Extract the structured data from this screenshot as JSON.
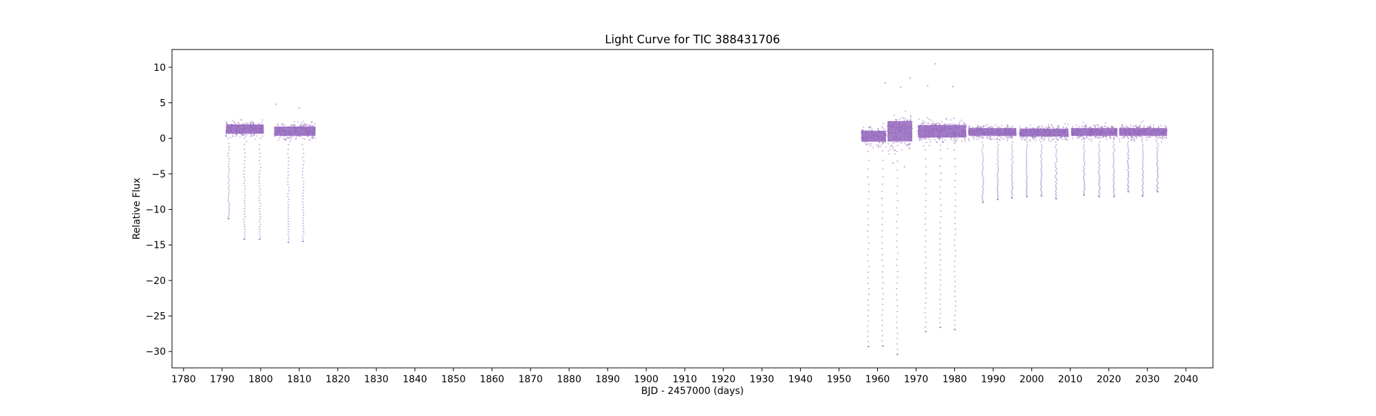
{
  "chart_data": {
    "type": "scatter",
    "title": "Light Curve for TIC 388431706",
    "xlabel": "BJD - 2457000 (days)",
    "ylabel": "Relative Flux",
    "xlim": [
      1777,
      2047
    ],
    "ylim": [
      -32.3,
      12.5
    ],
    "x_ticks": [
      1780,
      1790,
      1800,
      1810,
      1820,
      1830,
      1840,
      1850,
      1860,
      1870,
      1880,
      1890,
      1900,
      1910,
      1920,
      1930,
      1940,
      1950,
      1960,
      1970,
      1980,
      1990,
      2000,
      2010,
      2020,
      2030,
      2040
    ],
    "y_ticks": [
      10,
      5,
      0,
      -5,
      -10,
      -15,
      -20,
      -25,
      -30
    ],
    "grid": false,
    "legend": "none",
    "marker_color": "#9467bd",
    "segments": [
      {
        "x_start": 1791.0,
        "x_end": 1800.8,
        "level": 1.3,
        "scatter": 0.6
      },
      {
        "x_start": 1803.5,
        "x_end": 1814.2,
        "level": 1.0,
        "scatter": 0.6
      },
      {
        "x_start": 1955.8,
        "x_end": 1962.2,
        "level": 0.3,
        "scatter": 0.7
      },
      {
        "x_start": 1962.6,
        "x_end": 1969.0,
        "level": 1.0,
        "scatter": 1.3
      },
      {
        "x_start": 1970.5,
        "x_end": 1983.0,
        "level": 1.0,
        "scatter": 0.8
      },
      {
        "x_start": 1983.6,
        "x_end": 1996.0,
        "level": 0.9,
        "scatter": 0.5
      },
      {
        "x_start": 1996.8,
        "x_end": 2009.5,
        "level": 0.8,
        "scatter": 0.5
      },
      {
        "x_start": 2010.2,
        "x_end": 2022.2,
        "level": 0.9,
        "scatter": 0.5
      },
      {
        "x_start": 2022.7,
        "x_end": 2035.1,
        "level": 0.9,
        "scatter": 0.5
      }
    ],
    "transits": [
      {
        "x": 1791.7,
        "depth": -11.3
      },
      {
        "x": 1795.8,
        "depth": -14.2
      },
      {
        "x": 1799.8,
        "depth": -14.2
      },
      {
        "x": 1807.2,
        "depth": -14.6
      },
      {
        "x": 1811.0,
        "depth": -14.5
      },
      {
        "x": 1957.6,
        "depth": -29.3
      },
      {
        "x": 1961.3,
        "depth": -29.2
      },
      {
        "x": 1965.1,
        "depth": -30.4
      },
      {
        "x": 1972.5,
        "depth": -27.2
      },
      {
        "x": 1976.3,
        "depth": -26.6
      },
      {
        "x": 1980.1,
        "depth": -26.9
      },
      {
        "x": 1987.3,
        "depth": -9.0
      },
      {
        "x": 1991.2,
        "depth": -8.6
      },
      {
        "x": 1994.9,
        "depth": -8.4
      },
      {
        "x": 1998.7,
        "depth": -8.2
      },
      {
        "x": 2002.5,
        "depth": -8.1
      },
      {
        "x": 2006.3,
        "depth": -8.5
      },
      {
        "x": 2013.6,
        "depth": -8.0
      },
      {
        "x": 2017.5,
        "depth": -8.2
      },
      {
        "x": 2021.3,
        "depth": -8.2
      },
      {
        "x": 2025.0,
        "depth": -7.5
      },
      {
        "x": 2028.8,
        "depth": -8.1
      },
      {
        "x": 2032.6,
        "depth": -7.5
      }
    ],
    "outliers": [
      {
        "x": 1975.0,
        "y": 10.5
      },
      {
        "x": 1968.5,
        "y": 8.5
      },
      {
        "x": 1962.0,
        "y": 7.8
      },
      {
        "x": 1966.0,
        "y": 7.2
      },
      {
        "x": 1973.0,
        "y": 7.4
      },
      {
        "x": 1979.5,
        "y": 7.3
      },
      {
        "x": 1804.0,
        "y": 4.8
      },
      {
        "x": 1810.0,
        "y": 4.3
      },
      {
        "x": 1964.0,
        "y": -3.5
      },
      {
        "x": 1967.0,
        "y": -4.0
      }
    ]
  }
}
